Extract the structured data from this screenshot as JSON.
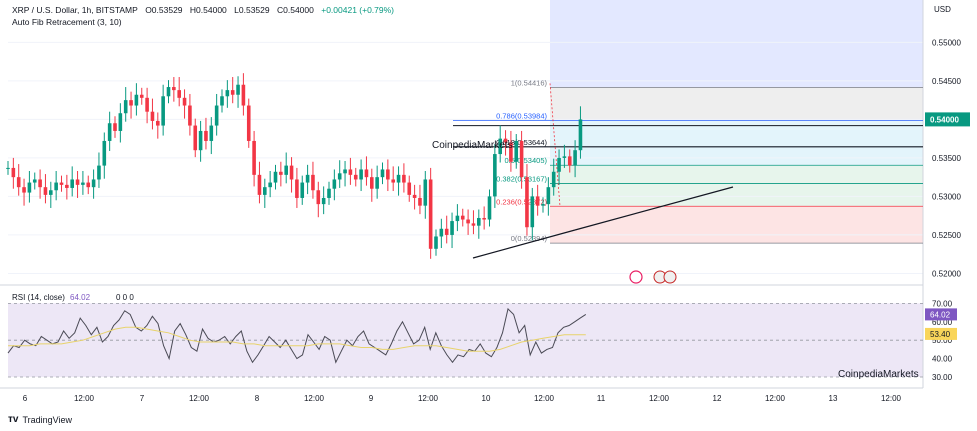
{
  "header": {
    "symbol": "XRP / U.S. Dollar, 1h, BITSTAMP",
    "open": "O0.53529",
    "high": "H0.54000",
    "low": "L0.53529",
    "close": "C0.54000",
    "change": "+0.00421 (+0.79%)",
    "indicator": "Auto Fib Retracement (3, 10)",
    "currency": "USD"
  },
  "price_axis": {
    "ticks": [
      "0.55000",
      "0.54500",
      "0.54000",
      "0.53500",
      "0.53000",
      "0.52500",
      "0.52000"
    ],
    "current_price": "0.54000"
  },
  "fib_levels": [
    {
      "label": "1(0.54416)",
      "value": 0.54416,
      "color": "#787b86"
    },
    {
      "label": "0.786(0.53984)",
      "value": 0.53984,
      "color": "#2962ff"
    },
    {
      "label": "0.618(0.53644)",
      "value": 0.53644,
      "color": "#131722"
    },
    {
      "label": "0.5(0.53405)",
      "value": 0.53405,
      "color": "#089981"
    },
    {
      "label": "0.382(0.53167)",
      "value": 0.53167,
      "color": "#089981"
    },
    {
      "label": "0.236(0.52872)",
      "value": 0.52872,
      "color": "#f23645"
    },
    {
      "label": "0(0.52394)",
      "value": 0.52394,
      "color": "#787b86"
    }
  ],
  "watermark": "CoinpediaMarkets",
  "rsi": {
    "label": "RSI (14, close)",
    "value_text": "64.02",
    "ma_value": "53.40",
    "extra": "0  0  0",
    "ticks": [
      "70.00",
      "60.00",
      "50.00",
      "40.00",
      "30.00"
    ],
    "color_line": "#4a4a55",
    "color_ma": "#e8d36b"
  },
  "time_axis": [
    "6",
    "12:00",
    "7",
    "12:00",
    "8",
    "12:00",
    "9",
    "12:00",
    "10",
    "12:00",
    "11",
    "12:00",
    "12",
    "12:00",
    "13",
    "12:00"
  ],
  "branding": "TradingView",
  "colors": {
    "up": "#089981",
    "down": "#f23645",
    "fib_zone_blue": "#e3e8ff",
    "rsi_band": "#ede7f6"
  },
  "chart_data": {
    "type": "candlestick",
    "ylim": [
      0.5185,
      0.5555
    ],
    "series": [
      {
        "name": "price",
        "values": [
          0.5337,
          0.5325,
          0.5312,
          0.5305,
          0.5318,
          0.5322,
          0.5312,
          0.5302,
          0.5308,
          0.5318,
          0.5315,
          0.5311,
          0.5322,
          0.5315,
          0.5318,
          0.5312,
          0.5322,
          0.534,
          0.5372,
          0.5395,
          0.5385,
          0.5408,
          0.5425,
          0.5418,
          0.5432,
          0.5428,
          0.541,
          0.5398,
          0.5392,
          0.543,
          0.5442,
          0.5438,
          0.5428,
          0.5418,
          0.5392,
          0.536,
          0.5385,
          0.5372,
          0.5392,
          0.5418,
          0.543,
          0.5438,
          0.5432,
          0.5445,
          0.5418,
          0.5372,
          0.5328,
          0.5302,
          0.5312,
          0.5318,
          0.5332,
          0.5328,
          0.534,
          0.5322,
          0.5298,
          0.5318,
          0.5328,
          0.5308,
          0.529,
          0.5298,
          0.531,
          0.5322,
          0.533,
          0.5335,
          0.5328,
          0.5322,
          0.5335,
          0.5325,
          0.531,
          0.5325,
          0.5335,
          0.5322,
          0.5318,
          0.5328,
          0.5318,
          0.5302,
          0.5298,
          0.5288,
          0.5322,
          0.5232,
          0.5248,
          0.5258,
          0.525,
          0.5268,
          0.5275,
          0.527,
          0.5265,
          0.5262,
          0.5272,
          0.527,
          0.53,
          0.5355,
          0.5375,
          0.537,
          0.5345,
          0.5372,
          0.5325,
          0.526,
          0.53,
          0.5288,
          0.529,
          0.5312,
          0.5332,
          0.535,
          0.5352,
          0.534,
          0.536,
          0.54
        ]
      },
      {
        "name": "RSI",
        "values": [
          43,
          47,
          46,
          50,
          48,
          47,
          52,
          50,
          48,
          49,
          55,
          51,
          54,
          62,
          58,
          53,
          57,
          49,
          52,
          58,
          61,
          66,
          64,
          57,
          55,
          58,
          63,
          59,
          47,
          40,
          55,
          59,
          53,
          46,
          44,
          56,
          51,
          49,
          50,
          52,
          48,
          52,
          55,
          44,
          38,
          42,
          47,
          52,
          49,
          46,
          50,
          45,
          40,
          42,
          53,
          49,
          45,
          52,
          50,
          38,
          44,
          50,
          47,
          52,
          55,
          48,
          46,
          44,
          42,
          48,
          55,
          60,
          54,
          48,
          50,
          57,
          45,
          54,
          47,
          42,
          38,
          42,
          41,
          45,
          44,
          48,
          43,
          41,
          46,
          54,
          67,
          64,
          54,
          58,
          42,
          49,
          43,
          45,
          46,
          54,
          57,
          58,
          60,
          62,
          64
        ]
      },
      {
        "name": "RSI-based MA",
        "values": [
          47,
          47,
          47,
          48,
          48,
          48,
          49,
          50,
          52,
          54,
          56,
          57,
          57,
          56,
          55,
          54,
          52,
          50,
          49,
          49,
          49,
          49,
          48,
          48,
          47,
          47,
          47,
          47,
          47,
          48,
          48,
          48,
          47,
          46,
          46,
          45,
          45,
          46,
          47,
          47,
          47,
          46,
          45,
          44,
          44,
          44,
          45,
          47,
          49,
          50,
          51,
          52,
          53,
          53,
          53
        ]
      }
    ]
  }
}
